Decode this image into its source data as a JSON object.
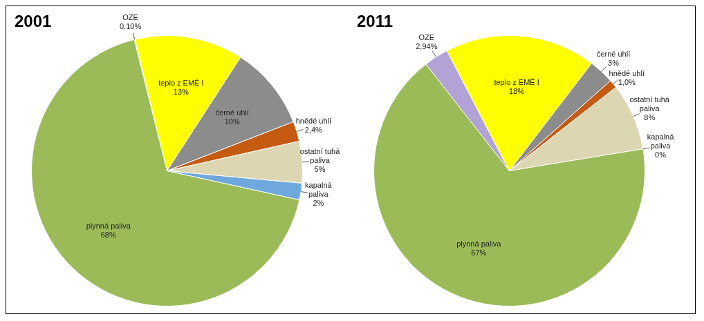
{
  "chart_data": [
    {
      "type": "pie",
      "title": "2001",
      "categories": [
        "OZE",
        "teplo z EMĚ I",
        "černé uhlí",
        "hnědé uhlí",
        "ostatní tuhá paliva",
        "kapalná paliva",
        "plynná paliva"
      ],
      "values": [
        0.1,
        13,
        10,
        2.4,
        5,
        2,
        68
      ],
      "value_labels": [
        "0,10%",
        "13%",
        "10%",
        "2,4%",
        "5%",
        "2%",
        "68%"
      ],
      "colors": [
        "#b3a2d6",
        "#ffff00",
        "#8c8c8c",
        "#c55a11",
        "#ddd6b2",
        "#6fa8dc",
        "#9bbb59"
      ],
      "legend": false
    },
    {
      "type": "pie",
      "title": "2011",
      "categories": [
        "OZE",
        "teplo z EMĚ I",
        "černé uhlí",
        "hnědé uhlí",
        "ostatní tuhá paliva",
        "kapalná paliva",
        "plynná paliva"
      ],
      "values": [
        2.94,
        18,
        3,
        1.0,
        8,
        0,
        67
      ],
      "value_labels": [
        "2,94%",
        "18%",
        "3%",
        "1,0%",
        "8%",
        "0%",
        "67%"
      ],
      "colors": [
        "#b3a2d6",
        "#ffff00",
        "#8c8c8c",
        "#c55a11",
        "#ddd6b2",
        "#6fa8dc",
        "#9bbb59"
      ],
      "legend": false
    }
  ]
}
